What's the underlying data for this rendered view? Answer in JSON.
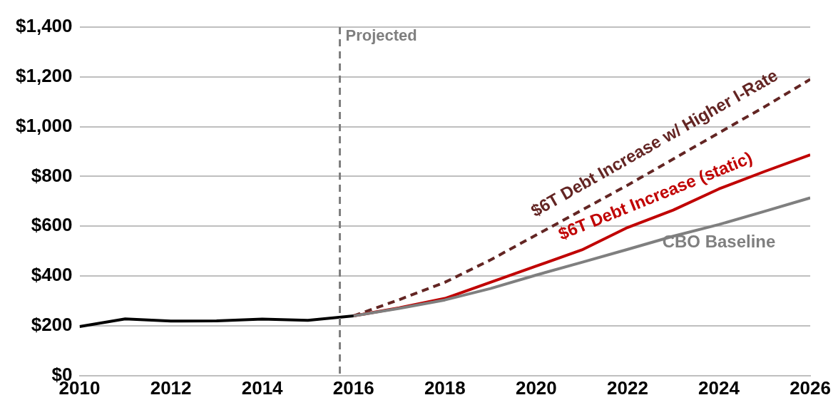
{
  "chart_data": {
    "type": "line",
    "xlim": [
      2010,
      2026
    ],
    "xticks": [
      2010,
      2012,
      2014,
      2016,
      2018,
      2020,
      2022,
      2024,
      2026
    ],
    "ylim": [
      0,
      1400
    ],
    "yticks": [
      {
        "value": 0,
        "label": "$0"
      },
      {
        "value": 200,
        "label": "$200"
      },
      {
        "value": 400,
        "label": "$400"
      },
      {
        "value": 600,
        "label": "$600"
      },
      {
        "value": 800,
        "label": "$800"
      },
      {
        "value": 1000,
        "label": "$1,000"
      },
      {
        "value": 1200,
        "label": "$1,200"
      },
      {
        "value": 1400,
        "label": "$1,400"
      }
    ],
    "grid": "y",
    "legend": false,
    "marker": "none",
    "ref_lines": [
      {
        "axis": "x",
        "value": 2015.7,
        "label": "Projected",
        "color": "#7f7f7f",
        "line_style": "dashed"
      }
    ],
    "series": [
      {
        "color": "#000000",
        "x": [
          2010,
          2011,
          2012,
          2013,
          2014,
          2015,
          2016
        ],
        "values": [
          197,
          228,
          219,
          220,
          227,
          222,
          240
        ]
      },
      {
        "name": "CBO Baseline",
        "color": "#7f7f7f",
        "x": [
          2016,
          2017,
          2018,
          2019,
          2020,
          2021,
          2022,
          2023,
          2024,
          2025,
          2026
        ],
        "values": [
          240,
          270,
          304,
          350,
          404,
          455,
          507,
          560,
          607,
          660,
          714
        ]
      },
      {
        "name": "$6T Debt Increase (static)",
        "color": "#c00000",
        "x": [
          2016,
          2017,
          2018,
          2019,
          2020,
          2021,
          2022,
          2023,
          2024,
          2025,
          2026
        ],
        "values": [
          240,
          272,
          310,
          375,
          440,
          505,
          595,
          665,
          750,
          820,
          887
        ]
      },
      {
        "name": "$6T Debt Increase w/ Higher I-Rate",
        "color": "#632523",
        "line_style": "dashed",
        "x": [
          2016,
          2017,
          2018,
          2019,
          2020,
          2021,
          2022,
          2023,
          2024,
          2025,
          2026
        ],
        "values": [
          240,
          305,
          375,
          465,
          565,
          665,
          765,
          870,
          975,
          1080,
          1190
        ]
      }
    ]
  }
}
